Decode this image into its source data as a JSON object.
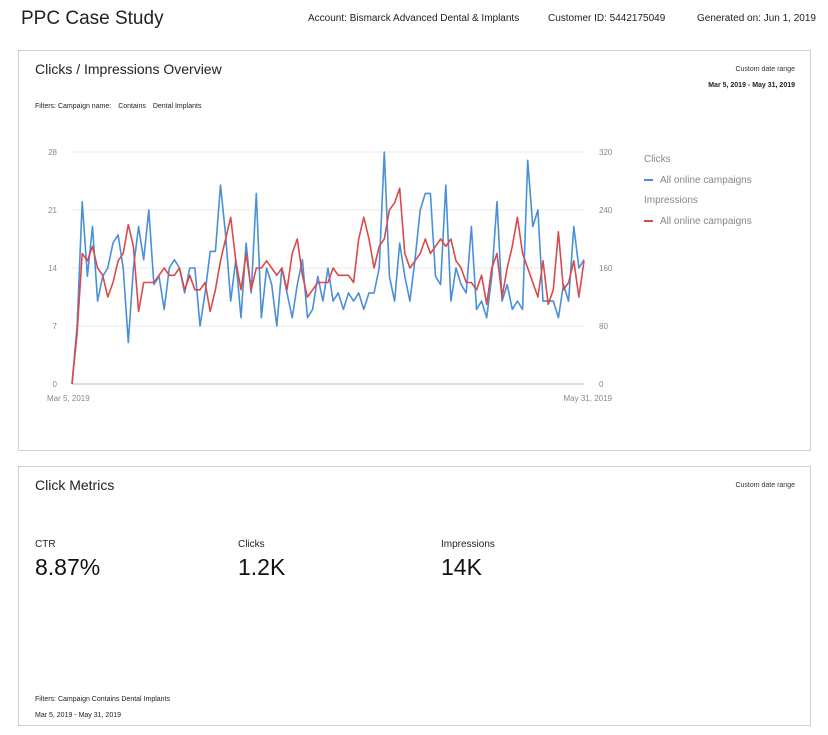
{
  "header": {
    "title": "PPC Case Study",
    "account": "Account: Bismarck Advanced Dental & Implants",
    "customer_id": "Customer ID: 5442175049",
    "generated": "Generated on: Jun 1, 2019"
  },
  "overview_panel": {
    "title": "Clicks / Impressions Overview",
    "range_label": "Custom date range",
    "range_value": "Mar 5, 2019 - May 31, 2019",
    "filters": {
      "prefix": "Filters: Campaign name:",
      "operator": "Contains",
      "value": "Dental Implants"
    }
  },
  "chart_data": {
    "type": "line",
    "x_start_label": "Mar 5, 2019",
    "x_end_label": "May 31, 2019",
    "left_axis": {
      "ticks": [
        0,
        7,
        14,
        21,
        28
      ],
      "ylim": [
        0,
        28
      ]
    },
    "right_axis": {
      "ticks": [
        0,
        80,
        160,
        240,
        320
      ],
      "ylim": [
        0,
        320
      ]
    },
    "grid": true,
    "legend_position": "right",
    "series": [
      {
        "group": "Clicks",
        "name": "All online campaigns",
        "axis": "left",
        "color": "#4a90d9",
        "values": [
          0,
          7,
          22,
          13,
          19,
          10,
          13,
          14,
          17,
          18,
          14,
          5,
          14,
          19,
          15,
          21,
          12,
          13,
          9,
          14,
          15,
          14,
          11,
          14,
          14,
          7,
          11,
          16,
          16,
          24,
          18,
          10,
          15,
          8,
          17,
          11,
          23,
          8,
          14,
          12,
          7,
          14,
          11,
          8,
          12,
          15,
          8,
          9,
          13,
          10,
          14,
          10,
          11,
          9,
          11,
          10,
          11,
          9,
          11,
          11,
          14,
          28,
          13,
          10,
          17,
          13,
          10,
          15,
          21,
          23,
          23,
          13,
          12,
          24,
          10,
          14,
          12,
          11,
          19,
          9,
          10,
          8,
          13,
          22,
          10,
          12,
          9,
          10,
          9,
          27,
          19,
          21,
          10,
          10,
          10,
          8,
          12,
          10,
          19,
          14,
          15
        ]
      },
      {
        "group": "Impressions",
        "name": "All online campaigns",
        "axis": "right",
        "color": "#d94a4a",
        "values": [
          0,
          70,
          180,
          170,
          190,
          160,
          150,
          120,
          140,
          170,
          180,
          220,
          190,
          100,
          140,
          140,
          140,
          150,
          160,
          150,
          150,
          160,
          130,
          150,
          130,
          130,
          140,
          100,
          130,
          170,
          200,
          230,
          170,
          130,
          180,
          130,
          160,
          160,
          170,
          160,
          150,
          160,
          130,
          180,
          200,
          150,
          120,
          130,
          140,
          140,
          140,
          160,
          150,
          150,
          150,
          140,
          200,
          230,
          200,
          160,
          190,
          200,
          240,
          250,
          270,
          180,
          160,
          170,
          180,
          200,
          180,
          190,
          200,
          190,
          200,
          170,
          160,
          140,
          140,
          130,
          150,
          110,
          160,
          180,
          120,
          160,
          190,
          230,
          180,
          160,
          140,
          120,
          170,
          110,
          130,
          210,
          130,
          140,
          170,
          120,
          170
        ]
      }
    ],
    "legend_groups": [
      "Clicks",
      "Impressions"
    ]
  },
  "metrics_panel": {
    "title": "Click Metrics",
    "range_label": "Custom date range",
    "metrics": [
      {
        "label": "CTR",
        "value": "8.87%"
      },
      {
        "label": "Clicks",
        "value": "1.2K"
      },
      {
        "label": "Impressions",
        "value": "14K"
      }
    ],
    "footer_filters": "Filters: Campaign Contains Dental Implants",
    "footer_range": "Mar 5, 2019 - May 31, 2019"
  }
}
